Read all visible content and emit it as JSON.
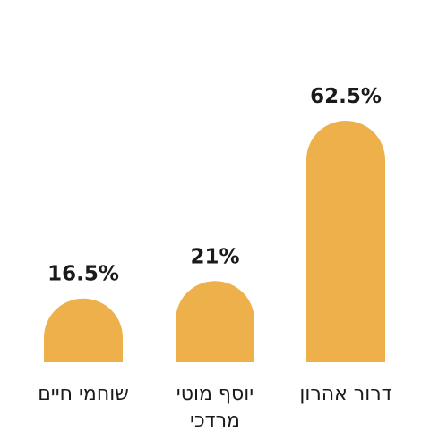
{
  "chart_data": {
    "type": "bar",
    "categories": [
      "שוחמי חיים",
      "יוסף מוטי מרדכי",
      "דרור אהרון"
    ],
    "values": [
      16.5,
      21,
      62.5
    ],
    "value_labels": [
      "16.5%",
      "21%",
      "62.5%"
    ],
    "bar_color": "#EDB04A",
    "title": "",
    "xlabel": "",
    "ylabel": "",
    "grid": false
  }
}
